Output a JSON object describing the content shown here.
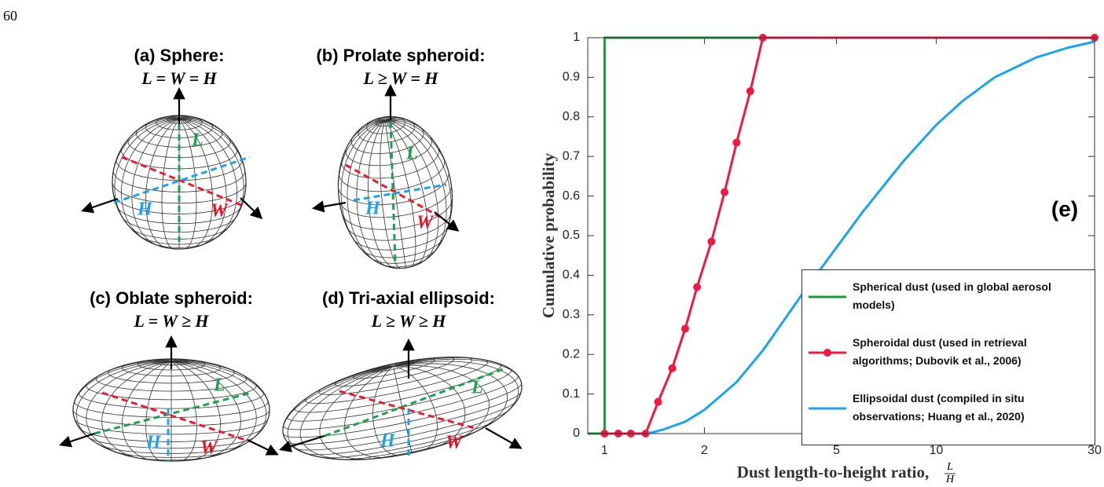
{
  "line_number": "60",
  "panels": [
    {
      "title": "(a) Sphere:",
      "relation": "L = W = H",
      "labels": {
        "L": "L",
        "W": "W",
        "H": "H"
      }
    },
    {
      "title": "(b) Prolate spheroid:",
      "relation": "L ≥ W = H",
      "labels": {
        "L": "L",
        "W": "W",
        "H": "H"
      }
    },
    {
      "title": "(c) Oblate spheroid:",
      "relation": "L = W ≥ H",
      "labels": {
        "L": "L",
        "W": "W",
        "H": "H"
      }
    },
    {
      "title": "(d) Tri-axial ellipsoid:",
      "relation": "L ≥ W ≥ H",
      "labels": {
        "L": "L",
        "W": "W",
        "H": "H"
      }
    }
  ],
  "chart_data": {
    "type": "line",
    "panel_label": "(e)",
    "xlabel": "Dust length-to-height ratio,",
    "xlabel_fraction": {
      "numerator": "L",
      "denominator": "H"
    },
    "ylabel": "Cumulative probability",
    "xscale": "log",
    "xlim": [
      0.89,
      30
    ],
    "ylim": [
      0,
      1
    ],
    "xticks": [
      1,
      2,
      5,
      10,
      30
    ],
    "yticks": [
      0,
      0.1,
      0.2,
      0.3,
      0.4,
      0.5,
      0.6,
      0.7,
      0.8,
      0.9,
      1
    ],
    "legend": "lower right",
    "series": [
      {
        "name": "Spherical dust (used in global aerosol models)",
        "color": "#169a3a",
        "marker": false,
        "x": [
          0.89,
          1,
          1,
          30
        ],
        "values": [
          0,
          0,
          1,
          1
        ]
      },
      {
        "name": "Spheroidal dust (used in retrieval algorithms; Dubovik et al., 2006)",
        "color": "#f0193f",
        "marker": true,
        "x": [
          1,
          1.1,
          1.2,
          1.33,
          1.45,
          1.6,
          1.75,
          1.9,
          2.1,
          2.3,
          2.5,
          2.75,
          3,
          30
        ],
        "values": [
          0,
          0,
          0,
          0,
          0.08,
          0.165,
          0.265,
          0.37,
          0.485,
          0.61,
          0.735,
          0.865,
          1,
          1
        ]
      },
      {
        "name": "Ellipsoidal dust (compiled in situ observations; Huang et al., 2020)",
        "color": "#1aa3f0",
        "marker": false,
        "x": [
          1.35,
          1.5,
          1.75,
          2,
          2.5,
          3,
          3.5,
          4,
          5,
          6,
          7,
          8,
          10,
          12,
          15,
          20,
          25,
          30
        ],
        "values": [
          0,
          0.01,
          0.03,
          0.06,
          0.13,
          0.21,
          0.29,
          0.36,
          0.47,
          0.56,
          0.63,
          0.69,
          0.78,
          0.84,
          0.9,
          0.95,
          0.975,
          0.99
        ]
      }
    ]
  }
}
